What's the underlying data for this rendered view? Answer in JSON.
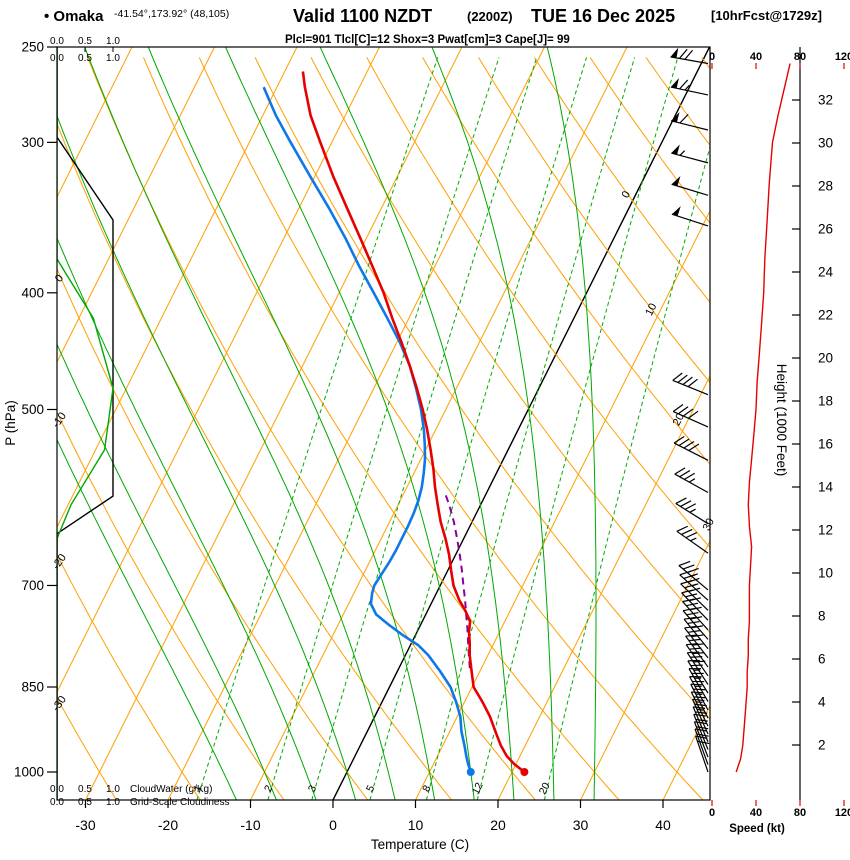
{
  "header": {
    "station_full": "• Omaka",
    "coords": "-41.54°,173.92° (48,105)",
    "valid": "Valid 1100 NZDT",
    "zulu": "(2200Z)",
    "date": "TUE 16 Dec 2025",
    "fcst": "[10hrFcst@1729z]",
    "indices": "Plcl=901 Tlcl[C]=12 Shox=3 Pwat[cm]=3 Cape[J]= 99"
  },
  "axes": {
    "pressure_label": "P (hPa)",
    "pressure_ticks": [
      250,
      300,
      400,
      500,
      700,
      850,
      1000
    ],
    "temp_label": "Temperature (C)",
    "temp_ticks": [
      -30,
      -20,
      -10,
      0,
      10,
      20,
      30,
      40
    ],
    "height_label": "Height (1000 Feet)",
    "height_ticks": [
      2,
      4,
      6,
      8,
      10,
      12,
      14,
      16,
      18,
      20,
      22,
      24,
      26,
      28,
      30,
      32
    ],
    "speed_label": "Speed (kt)",
    "speed_ticks": [
      0,
      40,
      80,
      120
    ],
    "scale_ticks": [
      "0.0",
      "0.5",
      "1.0"
    ],
    "cloudwater_label": "CloudWater (g/Kg)",
    "cloudiness_label": "Grid-Scale Cloudiness"
  },
  "colors": {
    "orange": "#FFA000",
    "green": "#00A800",
    "red": "#E60000",
    "blue": "#0F78E8",
    "purple": "#8800A0",
    "magenta": "#CC00CC",
    "black": "#000000"
  },
  "chart_data": {
    "type": "line",
    "subtype": "skew-t-log-p sounding",
    "station": "Omaka (-41.54, 173.92) grid (48,105)",
    "pressure_range_hpa": [
      250,
      1055
    ],
    "isotherms_c": {
      "min": -100,
      "max": 40,
      "step": 10
    },
    "isotherm_labels": [
      0,
      10,
      20,
      30
    ],
    "dry_adiab_range_c": {
      "min": -40,
      "max": 160,
      "step": 10
    },
    "dry_adiabat_labels": [
      0,
      -10,
      -20,
      -30
    ],
    "moist_adiabats_c": [
      -15,
      -10,
      -5,
      0,
      5,
      10,
      15,
      20,
      25,
      30
    ],
    "mixing_ratio_lines_gkg": [
      1,
      2,
      3,
      5,
      8,
      12,
      20
    ],
    "temperature_profile": [
      [
        1000,
        21.5
      ],
      [
        985,
        19.8
      ],
      [
        970,
        18.4
      ],
      [
        950,
        17.0
      ],
      [
        925,
        15.5
      ],
      [
        900,
        14.0
      ],
      [
        875,
        12.2
      ],
      [
        850,
        10.2
      ],
      [
        825,
        9.0
      ],
      [
        800,
        7.8
      ],
      [
        780,
        7.0
      ],
      [
        765,
        6.3
      ],
      [
        750,
        5.8
      ],
      [
        735,
        4.6
      ],
      [
        720,
        3.2
      ],
      [
        700,
        1.6
      ],
      [
        680,
        0.4
      ],
      [
        660,
        -0.8
      ],
      [
        640,
        -2.2
      ],
      [
        620,
        -3.8
      ],
      [
        600,
        -5.2
      ],
      [
        580,
        -6.6
      ],
      [
        560,
        -7.9
      ],
      [
        540,
        -9.4
      ],
      [
        520,
        -11.0
      ],
      [
        500,
        -12.8
      ],
      [
        480,
        -14.8
      ],
      [
        460,
        -17.0
      ],
      [
        440,
        -19.4
      ],
      [
        420,
        -22.0
      ],
      [
        400,
        -24.6
      ],
      [
        380,
        -27.6
      ],
      [
        360,
        -30.8
      ],
      [
        340,
        -34.2
      ],
      [
        320,
        -37.8
      ],
      [
        300,
        -41.4
      ],
      [
        285,
        -44.2
      ],
      [
        270,
        -46.6
      ],
      [
        262,
        -47.8
      ]
    ],
    "dewpoint_profile": [
      [
        1000,
        15.0
      ],
      [
        985,
        14.2
      ],
      [
        970,
        13.5
      ],
      [
        950,
        12.6
      ],
      [
        925,
        11.4
      ],
      [
        900,
        10.4
      ],
      [
        875,
        9.0
      ],
      [
        850,
        7.4
      ],
      [
        825,
        5.2
      ],
      [
        800,
        2.8
      ],
      [
        785,
        1.0
      ],
      [
        770,
        -1.5
      ],
      [
        755,
        -3.8
      ],
      [
        740,
        -6.0
      ],
      [
        725,
        -7.3
      ],
      [
        710,
        -7.8
      ],
      [
        700,
        -8.0
      ],
      [
        685,
        -7.8
      ],
      [
        670,
        -7.6
      ],
      [
        655,
        -7.5
      ],
      [
        640,
        -7.5
      ],
      [
        625,
        -7.5
      ],
      [
        610,
        -7.6
      ],
      [
        595,
        -7.8
      ],
      [
        580,
        -8.2
      ],
      [
        565,
        -8.8
      ],
      [
        550,
        -9.5
      ],
      [
        535,
        -10.4
      ],
      [
        520,
        -11.4
      ],
      [
        500,
        -13.0
      ],
      [
        480,
        -14.9
      ],
      [
        460,
        -17.0
      ],
      [
        440,
        -19.6
      ],
      [
        420,
        -22.6
      ],
      [
        400,
        -25.8
      ],
      [
        380,
        -29.2
      ],
      [
        360,
        -32.6
      ],
      [
        340,
        -36.4
      ],
      [
        320,
        -40.6
      ],
      [
        300,
        -45.0
      ],
      [
        285,
        -48.4
      ],
      [
        270,
        -51.6
      ]
    ],
    "parcel_path": [
      [
        820,
        8.6
      ],
      [
        800,
        7.7
      ],
      [
        780,
        6.8
      ],
      [
        760,
        5.9
      ],
      [
        740,
        4.9
      ],
      [
        720,
        3.9
      ],
      [
        700,
        2.8
      ],
      [
        680,
        1.7
      ],
      [
        660,
        0.5
      ],
      [
        640,
        -0.8
      ],
      [
        620,
        -2.2
      ],
      [
        600,
        -3.8
      ],
      [
        588,
        -4.9
      ]
    ],
    "surface_dots": {
      "pressure_hpa": 1000,
      "temperature_c": 21.5,
      "dewpoint_c": 15.0
    },
    "wind_barbs": [
      [
        1000,
        341,
        18
      ],
      [
        986,
        340,
        20
      ],
      [
        972,
        339,
        20
      ],
      [
        958,
        338,
        22
      ],
      [
        944,
        337,
        22
      ],
      [
        930,
        336,
        24
      ],
      [
        916,
        334,
        25
      ],
      [
        902,
        333,
        25
      ],
      [
        888,
        331,
        26
      ],
      [
        874,
        330,
        26
      ],
      [
        860,
        328,
        27
      ],
      [
        846,
        327,
        28
      ],
      [
        832,
        325,
        28
      ],
      [
        818,
        324,
        29
      ],
      [
        804,
        322,
        30
      ],
      [
        790,
        321,
        30
      ],
      [
        776,
        319,
        31
      ],
      [
        762,
        318,
        31
      ],
      [
        748,
        316,
        32
      ],
      [
        734,
        314,
        32
      ],
      [
        720,
        312,
        33
      ],
      [
        706,
        310,
        33
      ],
      [
        658,
        305,
        35
      ],
      [
        622,
        302,
        34
      ],
      [
        586,
        299,
        36
      ],
      [
        551,
        297,
        38
      ],
      [
        517,
        294,
        40
      ],
      [
        486,
        292,
        41
      ],
      [
        352,
        288,
        48
      ],
      [
        332,
        287,
        50
      ],
      [
        312,
        285,
        55
      ],
      [
        293,
        284,
        60
      ],
      [
        274,
        282,
        65
      ],
      [
        258,
        280,
        70
      ]
    ],
    "speed_profile_kt": [
      [
        1000,
        22
      ],
      [
        975,
        26
      ],
      [
        950,
        28
      ],
      [
        925,
        29
      ],
      [
        900,
        30
      ],
      [
        875,
        31
      ],
      [
        850,
        32
      ],
      [
        825,
        32
      ],
      [
        800,
        33
      ],
      [
        775,
        33
      ],
      [
        750,
        34
      ],
      [
        725,
        34
      ],
      [
        700,
        34
      ],
      [
        675,
        35
      ],
      [
        650,
        36
      ],
      [
        625,
        34
      ],
      [
        600,
        33
      ],
      [
        575,
        34
      ],
      [
        550,
        36
      ],
      [
        525,
        38
      ],
      [
        500,
        40
      ],
      [
        475,
        41
      ],
      [
        450,
        43
      ],
      [
        425,
        45
      ],
      [
        400,
        47
      ],
      [
        375,
        48
      ],
      [
        350,
        50
      ],
      [
        325,
        52
      ],
      [
        300,
        55
      ],
      [
        285,
        60
      ],
      [
        270,
        66
      ],
      [
        258,
        71
      ]
    ],
    "cloudiness_profile": [
      [
        250,
        0
      ],
      [
        297,
        0
      ],
      [
        348,
        1
      ],
      [
        590,
        1
      ],
      [
        634,
        0
      ],
      [
        1055,
        0
      ]
    ],
    "cloudwater_profile": [
      [
        250,
        0
      ],
      [
        375,
        0
      ],
      [
        420,
        0.13
      ],
      [
        480,
        0.2
      ],
      [
        540,
        0.17
      ],
      [
        600,
        0.05
      ],
      [
        640,
        0
      ],
      [
        1055,
        0
      ]
    ]
  }
}
